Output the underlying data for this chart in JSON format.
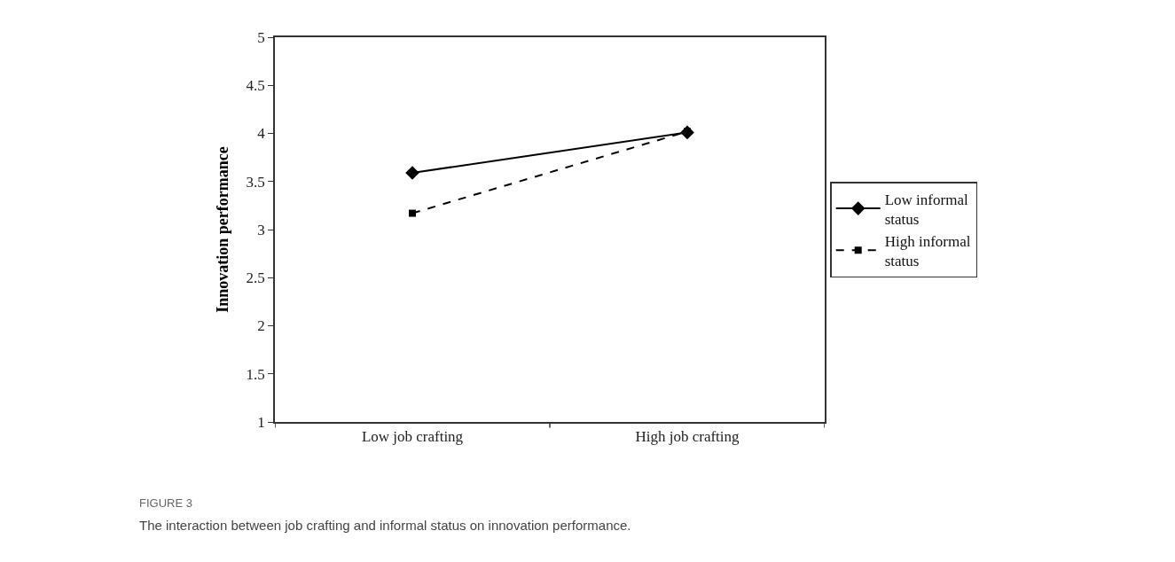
{
  "chart_data": {
    "type": "line",
    "ylabel": "Innovation performance",
    "categories": [
      "Low job crafting",
      "High job crafting"
    ],
    "series": [
      {
        "name": "Low informal status",
        "color": "#000000",
        "values": [
          3.59,
          4.01
        ],
        "marker": "diamond",
        "line_style": "solid"
      },
      {
        "name": "High informal status",
        "color": "#000000",
        "values": [
          3.17,
          4.02
        ],
        "marker": "square",
        "line_style": "dashed"
      }
    ],
    "ylim": [
      1,
      5
    ],
    "yticks": [
      1,
      1.5,
      2,
      2.5,
      3,
      3.5,
      4,
      4.5,
      5
    ],
    "grid": false,
    "legend": "right",
    "annotations": [
      "FIGURE 3",
      "The interaction between job crafting and informal status on innovation performance."
    ]
  }
}
